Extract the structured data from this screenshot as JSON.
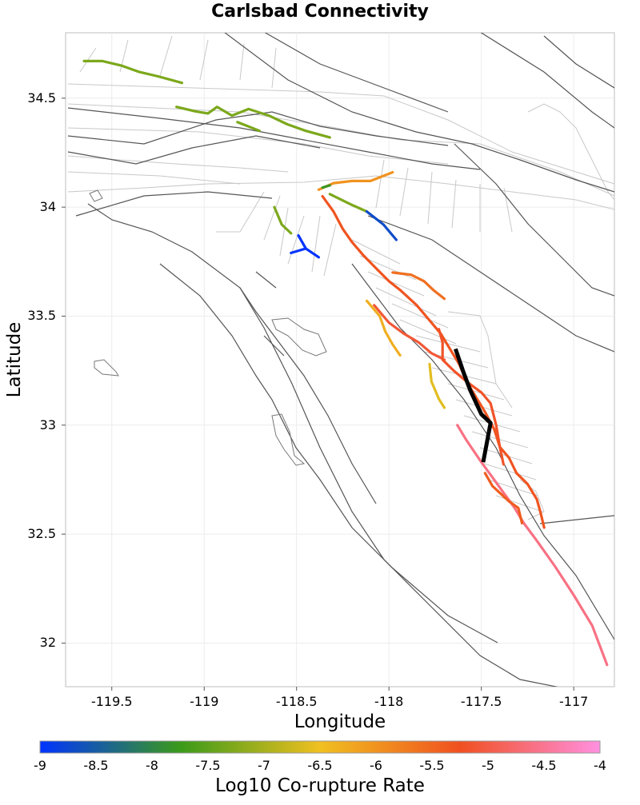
{
  "title": "Carlsbad Connectivity",
  "axes": {
    "xlabel": "Longitude",
    "ylabel": "Latitude",
    "xlim": [
      -119.75,
      -116.78
    ],
    "ylim": [
      31.8,
      34.8
    ],
    "xticks": [
      {
        "value": -119.5,
        "label": "-119.5"
      },
      {
        "value": -119,
        "label": "-119"
      },
      {
        "value": -118.5,
        "label": "-118.5"
      },
      {
        "value": -118,
        "label": "-118"
      },
      {
        "value": -117.5,
        "label": "-117.5"
      },
      {
        "value": -117,
        "label": "-117"
      }
    ],
    "yticks": [
      {
        "value": 34.5,
        "label": "34.5"
      },
      {
        "value": 34,
        "label": "34"
      },
      {
        "value": 33.5,
        "label": "33.5"
      },
      {
        "value": 33,
        "label": "33"
      },
      {
        "value": 32.5,
        "label": "32.5"
      },
      {
        "value": 32,
        "label": "32"
      }
    ]
  },
  "colorbar": {
    "label": "Log10 Co-rupture Rate",
    "range": [
      -9,
      -4
    ],
    "ticks": [
      {
        "value": -9,
        "label": "-9"
      },
      {
        "value": -8.5,
        "label": "-8.5"
      },
      {
        "value": -8,
        "label": "-8"
      },
      {
        "value": -7.5,
        "label": "-7.5"
      },
      {
        "value": -7,
        "label": "-7"
      },
      {
        "value": -6.5,
        "label": "-6.5"
      },
      {
        "value": -6,
        "label": "-6"
      },
      {
        "value": -5.5,
        "label": "-5.5"
      },
      {
        "value": -5,
        "label": "-5"
      },
      {
        "value": -4.5,
        "label": "-4.5"
      },
      {
        "value": -4,
        "label": "-4"
      }
    ],
    "stops": [
      "#0033ff",
      "#3a9a1a",
      "#f0c020",
      "#f05020",
      "#ff90e0"
    ]
  },
  "chart_data": {
    "type": "map",
    "source_fault": {
      "name": "Carlsbad",
      "color": "#000000",
      "trace": [
        [
          -117.64,
          33.35
        ],
        [
          -117.6,
          33.25
        ],
        [
          -117.56,
          33.16
        ],
        [
          -117.5,
          33.05
        ],
        [
          -117.45,
          33.01
        ],
        [
          -117.49,
          32.83
        ]
      ]
    },
    "ruptures": [
      {
        "rate": -7.3,
        "trace": [
          [
            -119.65,
            34.67
          ],
          [
            -119.55,
            34.67
          ],
          [
            -119.45,
            34.65
          ],
          [
            -119.35,
            34.62
          ],
          [
            -119.25,
            34.6
          ],
          [
            -119.12,
            34.57
          ]
        ]
      },
      {
        "rate": -7.3,
        "trace": [
          [
            -119.15,
            34.46
          ],
          [
            -119.05,
            34.44
          ],
          [
            -118.98,
            34.43
          ],
          [
            -118.93,
            34.46
          ],
          [
            -118.85,
            34.42
          ],
          [
            -118.76,
            34.45
          ],
          [
            -118.65,
            34.42
          ],
          [
            -118.55,
            34.38
          ],
          [
            -118.45,
            34.35
          ],
          [
            -118.32,
            34.32
          ]
        ]
      },
      {
        "rate": -7.3,
        "trace": [
          [
            -118.82,
            34.39
          ],
          [
            -118.76,
            34.37
          ],
          [
            -118.7,
            34.35
          ]
        ]
      },
      {
        "rate": -6.0,
        "trace": [
          [
            -118.38,
            34.08
          ],
          [
            -118.3,
            34.11
          ],
          [
            -118.2,
            34.12
          ],
          [
            -118.1,
            34.12
          ],
          [
            -117.98,
            34.16
          ]
        ]
      },
      {
        "rate": -7.8,
        "trace": [
          [
            -118.36,
            34.09
          ],
          [
            -118.32,
            34.1
          ]
        ]
      },
      {
        "rate": -7.3,
        "trace": [
          [
            -118.62,
            34.0
          ],
          [
            -118.58,
            33.92
          ],
          [
            -118.53,
            33.88
          ]
        ]
      },
      {
        "rate": -7.3,
        "trace": [
          [
            -118.32,
            34.06
          ],
          [
            -118.2,
            34.01
          ],
          [
            -118.12,
            33.98
          ]
        ]
      },
      {
        "rate": -8.7,
        "trace": [
          [
            -118.12,
            33.98
          ],
          [
            -118.03,
            33.92
          ],
          [
            -117.96,
            33.85
          ]
        ]
      },
      {
        "rate": -9.0,
        "trace": [
          [
            -118.53,
            33.79
          ],
          [
            -118.45,
            33.81
          ],
          [
            -118.38,
            33.77
          ]
        ]
      },
      {
        "rate": -9.0,
        "trace": [
          [
            -118.49,
            33.87
          ],
          [
            -118.45,
            33.81
          ]
        ]
      },
      {
        "rate": -5.3,
        "trace": [
          [
            -118.36,
            34.05
          ],
          [
            -118.3,
            33.98
          ],
          [
            -118.25,
            33.9
          ],
          [
            -118.2,
            33.84
          ],
          [
            -118.14,
            33.78
          ],
          [
            -118.07,
            33.72
          ],
          [
            -118.0,
            33.66
          ],
          [
            -117.94,
            33.62
          ],
          [
            -117.85,
            33.55
          ],
          [
            -117.78,
            33.48
          ],
          [
            -117.72,
            33.42
          ],
          [
            -117.67,
            33.35
          ],
          [
            -117.62,
            33.28
          ],
          [
            -117.58,
            33.2
          ],
          [
            -117.53,
            33.13
          ],
          [
            -117.48,
            33.06
          ],
          [
            -117.43,
            32.98
          ],
          [
            -117.4,
            32.9
          ],
          [
            -117.35,
            32.85
          ],
          [
            -117.31,
            32.78
          ],
          [
            -117.25,
            32.73
          ],
          [
            -117.2,
            32.66
          ],
          [
            -117.18,
            32.6
          ],
          [
            -117.16,
            32.53
          ]
        ]
      },
      {
        "rate": -5.6,
        "trace": [
          [
            -117.98,
            33.7
          ],
          [
            -117.88,
            33.69
          ],
          [
            -117.81,
            33.66
          ],
          [
            -117.76,
            33.62
          ],
          [
            -117.7,
            33.58
          ]
        ]
      },
      {
        "rate": -6.3,
        "trace": [
          [
            -118.12,
            33.57
          ],
          [
            -118.05,
            33.5
          ],
          [
            -118.02,
            33.43
          ],
          [
            -117.98,
            33.37
          ],
          [
            -117.94,
            33.32
          ]
        ]
      },
      {
        "rate": -6.6,
        "trace": [
          [
            -117.78,
            33.28
          ],
          [
            -117.77,
            33.2
          ],
          [
            -117.73,
            33.12
          ],
          [
            -117.7,
            33.08
          ]
        ]
      },
      {
        "rate": -5.1,
        "trace": [
          [
            -118.08,
            33.55
          ],
          [
            -118.0,
            33.47
          ],
          [
            -117.92,
            33.42
          ],
          [
            -117.84,
            33.38
          ],
          [
            -117.77,
            33.33
          ],
          [
            -117.7,
            33.3
          ]
        ]
      },
      {
        "rate": -5.2,
        "trace": [
          [
            -117.73,
            33.44
          ],
          [
            -117.71,
            33.38
          ],
          [
            -117.71,
            33.3
          ],
          [
            -117.65,
            33.25
          ],
          [
            -117.58,
            33.2
          ],
          [
            -117.5,
            33.15
          ],
          [
            -117.45,
            33.1
          ],
          [
            -117.42,
            33.0
          ],
          [
            -117.4,
            32.9
          ],
          [
            -117.38,
            32.82
          ]
        ]
      },
      {
        "rate": -4.6,
        "trace": [
          [
            -117.63,
            33.0
          ],
          [
            -117.58,
            32.93
          ],
          [
            -117.5,
            32.83
          ],
          [
            -117.44,
            32.76
          ],
          [
            -117.38,
            32.69
          ],
          [
            -117.32,
            32.62
          ],
          [
            -117.27,
            32.55
          ],
          [
            -117.2,
            32.47
          ],
          [
            -117.1,
            32.35
          ],
          [
            -117.0,
            32.22
          ],
          [
            -116.9,
            32.08
          ],
          [
            -116.82,
            31.9
          ]
        ]
      },
      {
        "rate": -5.4,
        "trace": [
          [
            -117.48,
            32.78
          ],
          [
            -117.44,
            32.72
          ],
          [
            -117.35,
            32.65
          ],
          [
            -117.3,
            32.62
          ],
          [
            -117.28,
            32.55
          ]
        ]
      }
    ]
  }
}
